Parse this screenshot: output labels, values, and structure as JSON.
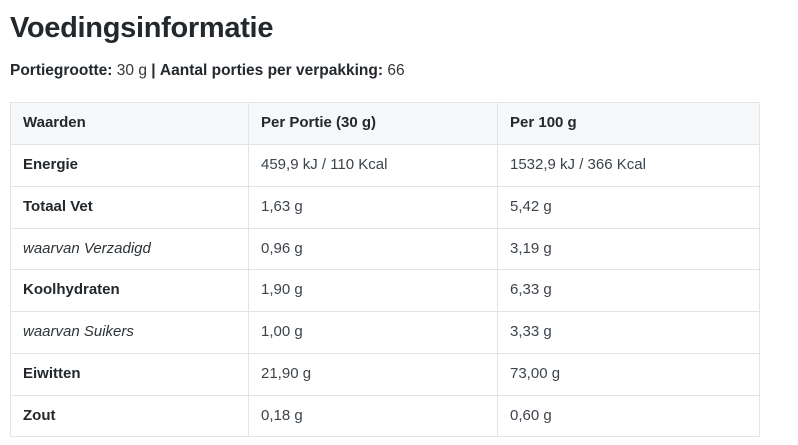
{
  "page": {
    "title": "Voedingsinformatie"
  },
  "serving_info": {
    "portion_label": "Portiegrootte:",
    "portion_value": "30 g",
    "separator": "|",
    "servings_label": "Aantal porties per verpakking:",
    "servings_value": "66"
  },
  "table": {
    "headers": [
      "Waarden",
      "Per Portie (30 g)",
      "Per 100 g"
    ],
    "rows": [
      {
        "name": "Energie",
        "style": "bold",
        "per_portie": "459,9 kJ / 110 Kcal",
        "per_100g": "1532,9 kJ / 366 Kcal"
      },
      {
        "name": "Totaal Vet",
        "style": "bold",
        "per_portie": "1,63 g",
        "per_100g": "5,42 g"
      },
      {
        "name": "waarvan Verzadigd",
        "style": "italic",
        "per_portie": "0,96 g",
        "per_100g": "3,19 g"
      },
      {
        "name": "Koolhydraten",
        "style": "bold",
        "per_portie": "1,90 g",
        "per_100g": "6,33 g"
      },
      {
        "name": "waarvan Suikers",
        "style": "italic",
        "per_portie": "1,00 g",
        "per_100g": "3,33 g"
      },
      {
        "name": "Eiwitten",
        "style": "bold",
        "per_portie": "21,90 g",
        "per_100g": "73,00 g"
      },
      {
        "name": "Zout",
        "style": "bold",
        "per_portie": "0,18 g",
        "per_100g": "0,60 g"
      }
    ]
  },
  "colors": {
    "text_dark": "#23282d",
    "text_value": "#3c434a",
    "table_border": "#e2e4e7",
    "header_background": "#f7f8f9",
    "page_background": "#ffffff"
  }
}
